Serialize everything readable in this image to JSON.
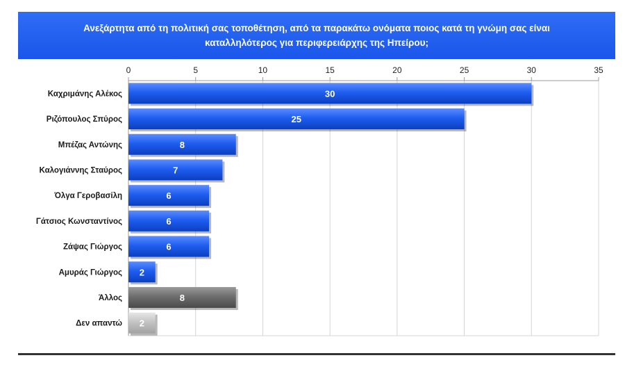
{
  "chart_data": {
    "type": "bar",
    "orientation": "horizontal",
    "title_lines": [
      "Ανεξάρτητα από τη πολιτική σας τοποθέτηση, από τα παρακάτω ονόματα ποιος κατά τη γνώμη σας είναι",
      "καταλληλότερος για περιφερειάρχης της  Ηπείρου;"
    ],
    "categories": [
      "Καχριμάνης Αλέκος",
      "Ριζόπουλος Σπύρος",
      "Μπέζας Αντώνης",
      "Καλογιάννης Σταύρος",
      "Όλγα Γεροβασίλη",
      "Γάτσιος Κωνσταντίνος",
      "Ζάψας Γιώργος",
      "Αμυράς Γιώργος",
      "Άλλος",
      "Δεν απαντώ"
    ],
    "values": [
      30,
      25,
      8,
      7,
      6,
      6,
      6,
      2,
      8,
      2
    ],
    "bar_colors": [
      "#1f5ef0",
      "#1f5ef0",
      "#1f5ef0",
      "#1f5ef0",
      "#1f5ef0",
      "#1f5ef0",
      "#1f5ef0",
      "#1f5ef0",
      "#6e6e6e",
      "#bdbdbd"
    ],
    "xlim": [
      0,
      35
    ],
    "x_ticks": [
      0,
      5,
      10,
      15,
      20,
      25,
      30,
      35
    ],
    "x_axis_position": "top",
    "grid": true,
    "data_labels": true,
    "title_banner_color": "#2160f2"
  }
}
